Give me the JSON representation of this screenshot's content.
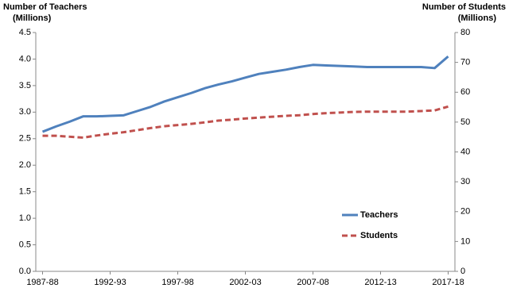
{
  "chart_data": {
    "type": "line",
    "ylabel": [
      "Number of Teachers",
      "(Millions)"
    ],
    "y2label": [
      "Number of Students",
      "(Millions)"
    ],
    "categories": [
      "1987-88",
      null,
      null,
      null,
      null,
      "1992-93",
      null,
      null,
      null,
      null,
      "1997-98",
      null,
      null,
      null,
      null,
      "2002-03",
      null,
      null,
      null,
      null,
      "2007-08",
      null,
      null,
      null,
      null,
      "2012-13",
      null,
      null,
      null,
      null,
      "2017-18"
    ],
    "series": [
      {
        "name": "Teachers",
        "color": "#4f81bd",
        "dash": false,
        "values": [
          2.63,
          2.73,
          2.82,
          2.92,
          2.92,
          2.93,
          2.94,
          3.02,
          3.1,
          3.2,
          3.28,
          3.36,
          3.45,
          3.52,
          3.58,
          3.65,
          3.72,
          3.76,
          3.8,
          3.85,
          3.89,
          3.88,
          3.87,
          3.86,
          3.85,
          3.85,
          3.85,
          3.85,
          3.85,
          3.83,
          4.05
        ]
      },
      {
        "name": "Students",
        "color": "#c0504d",
        "dash": true,
        "axis": "y2",
        "values": [
          45.4,
          45.4,
          45.1,
          44.8,
          45.5,
          46.1,
          46.6,
          47.3,
          48.0,
          48.6,
          49.0,
          49.4,
          49.9,
          50.5,
          50.8,
          51.2,
          51.5,
          51.8,
          52.1,
          52.3,
          52.7,
          53.0,
          53.2,
          53.4,
          53.5,
          53.5,
          53.5,
          53.5,
          53.7,
          53.9,
          55.2
        ]
      }
    ],
    "ylim": [
      0,
      4.5
    ],
    "yticks": [
      {
        "value": 0,
        "label": "0.0"
      },
      {
        "value": 0.5,
        "label": "0.5"
      },
      {
        "value": 1,
        "label": "1.0"
      },
      {
        "value": 1.5,
        "label": "1.5"
      },
      {
        "value": 2,
        "label": "2.0"
      },
      {
        "value": 2.5,
        "label": "2.5"
      },
      {
        "value": 3,
        "label": "3.0"
      },
      {
        "value": 3.5,
        "label": "3.5"
      },
      {
        "value": 4,
        "label": "4.0"
      },
      {
        "value": 4.5,
        "label": "4.5"
      }
    ],
    "y2lim": [
      0,
      80
    ],
    "y2ticks": [
      0,
      10,
      20,
      30,
      40,
      50,
      60,
      70,
      80
    ],
    "legend": "lower right",
    "grid": false
  }
}
